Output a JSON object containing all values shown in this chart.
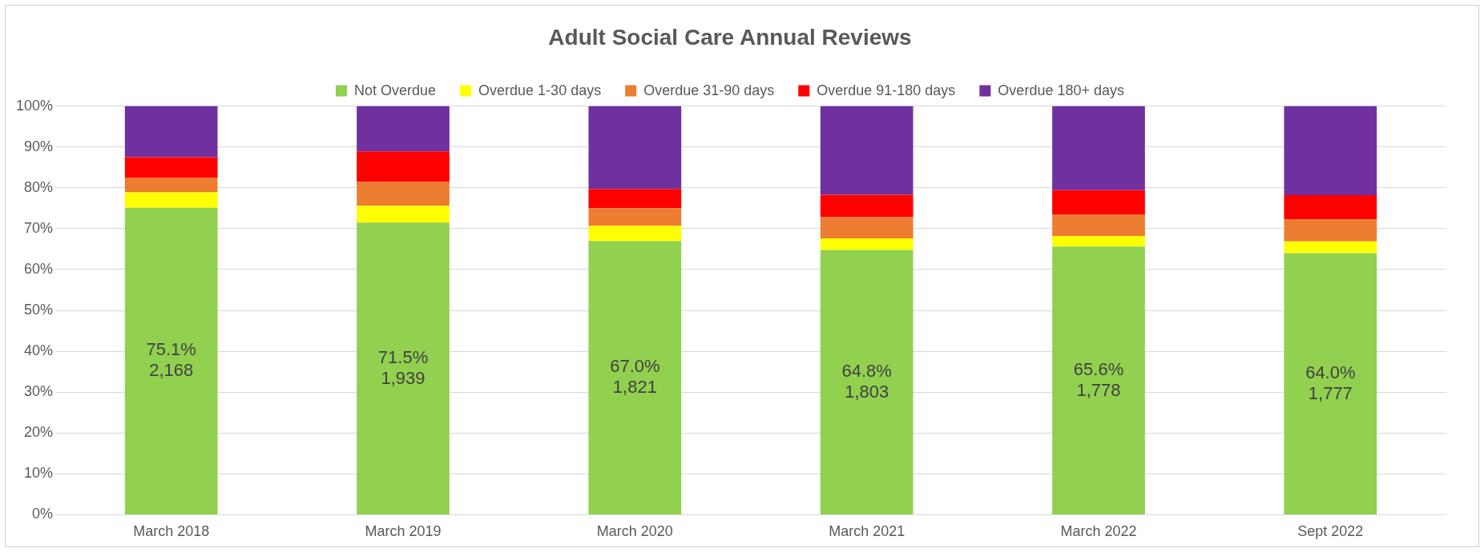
{
  "chart_data": {
    "type": "bar",
    "title": "Adult Social Care Annual Reviews",
    "stacked": true,
    "legend": "top",
    "grid": "y",
    "categories": [
      "March 2018",
      "March 2019",
      "March 2020",
      "March 2021",
      "March 2022",
      "Sept 2022"
    ],
    "ylim": [
      0,
      100
    ],
    "yticks": [
      {
        "value": 0,
        "label": "0%"
      },
      {
        "value": 10,
        "label": "10%"
      },
      {
        "value": 20,
        "label": "20%"
      },
      {
        "value": 30,
        "label": "30%"
      },
      {
        "value": 40,
        "label": "40%"
      },
      {
        "value": 50,
        "label": "50%"
      },
      {
        "value": 60,
        "label": "60%"
      },
      {
        "value": 70,
        "label": "70%"
      },
      {
        "value": 80,
        "label": "80%"
      },
      {
        "value": 90,
        "label": "90%"
      },
      {
        "value": 100,
        "label": "100%"
      }
    ],
    "series": [
      {
        "name": "Not Overdue",
        "color": "#92d050",
        "values": [
          75.1,
          71.5,
          67.0,
          64.8,
          65.6,
          64.0
        ],
        "value_labels": [
          "75.1%\n2,168",
          "71.5%\n1,939",
          "67.0%\n1,821",
          "64.8%\n1,803",
          "65.6%\n1,778",
          "64.0%\n1,777"
        ]
      },
      {
        "name": "Overdue 1-30 days",
        "color": "#ffff00",
        "values": [
          3.8,
          4.1,
          3.7,
          2.8,
          2.6,
          2.9
        ]
      },
      {
        "name": "Overdue 31-90 days",
        "color": "#ed7d31",
        "values": [
          3.6,
          5.8,
          4.3,
          5.2,
          5.3,
          5.3
        ]
      },
      {
        "name": "Overdue 91-180 days",
        "color": "#ff0000",
        "values": [
          5.0,
          7.5,
          4.7,
          5.5,
          5.9,
          6.0
        ]
      },
      {
        "name": "Overdue 180+ days",
        "color": "#7030a0",
        "values": [
          12.5,
          11.1,
          20.3,
          21.7,
          20.6,
          21.8
        ]
      }
    ]
  }
}
